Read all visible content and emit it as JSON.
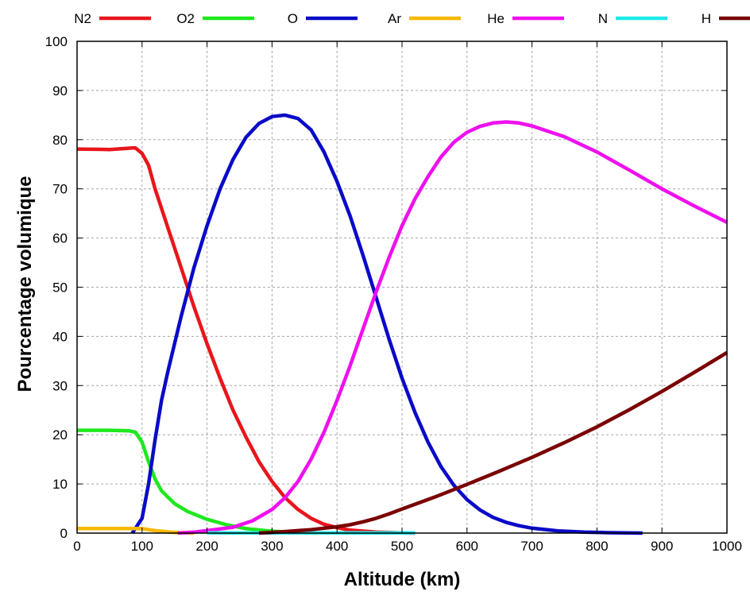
{
  "chart_data": {
    "type": "line",
    "title": "",
    "xlabel": "Altitude (km)",
    "ylabel": "Pourcentage volumique",
    "xlim": [
      0,
      1000
    ],
    "ylim": [
      0,
      100
    ],
    "xticks": [
      0,
      100,
      200,
      300,
      400,
      500,
      600,
      700,
      800,
      900,
      1000
    ],
    "yticks": [
      0,
      10,
      20,
      30,
      40,
      50,
      60,
      70,
      80,
      90,
      100
    ],
    "grid": true,
    "legend_position": "top",
    "series": [
      {
        "name": "N2",
        "color": "#e8161b",
        "points": [
          [
            0,
            78.1
          ],
          [
            50,
            78
          ],
          [
            85,
            78.3
          ],
          [
            90,
            78.3
          ],
          [
            100,
            77.2
          ],
          [
            110,
            74.8
          ],
          [
            120,
            70
          ],
          [
            140,
            62
          ],
          [
            160,
            54
          ],
          [
            180,
            46
          ],
          [
            200,
            38.5
          ],
          [
            220,
            31.5
          ],
          [
            240,
            25
          ],
          [
            260,
            19.5
          ],
          [
            280,
            14.5
          ],
          [
            300,
            10.5
          ],
          [
            320,
            7.2
          ],
          [
            340,
            4.8
          ],
          [
            360,
            3
          ],
          [
            380,
            1.8
          ],
          [
            400,
            1.1
          ],
          [
            420,
            0.6
          ],
          [
            460,
            0.2
          ],
          [
            500,
            0.05
          ],
          [
            520,
            0
          ]
        ]
      },
      {
        "name": "O2",
        "color": "#1ee81e",
        "points": [
          [
            0,
            20.9
          ],
          [
            50,
            20.9
          ],
          [
            80,
            20.8
          ],
          [
            90,
            20.5
          ],
          [
            100,
            18.5
          ],
          [
            110,
            14.5
          ],
          [
            120,
            11
          ],
          [
            130,
            8.6
          ],
          [
            150,
            6
          ],
          [
            170,
            4.4
          ],
          [
            200,
            2.8
          ],
          [
            230,
            1.7
          ],
          [
            260,
            0.9
          ],
          [
            290,
            0.5
          ],
          [
            320,
            0.2
          ],
          [
            350,
            0.05
          ],
          [
            370,
            0
          ]
        ]
      },
      {
        "name": "O",
        "color": "#0a0ac8",
        "points": [
          [
            85,
            0
          ],
          [
            100,
            3
          ],
          [
            110,
            10
          ],
          [
            120,
            19
          ],
          [
            130,
            27
          ],
          [
            140,
            33
          ],
          [
            160,
            44
          ],
          [
            180,
            54
          ],
          [
            200,
            62.5
          ],
          [
            220,
            70
          ],
          [
            240,
            76
          ],
          [
            260,
            80.5
          ],
          [
            280,
            83.3
          ],
          [
            300,
            84.7
          ],
          [
            320,
            85
          ],
          [
            340,
            84.3
          ],
          [
            360,
            82
          ],
          [
            380,
            77.5
          ],
          [
            400,
            71.5
          ],
          [
            420,
            64.5
          ],
          [
            440,
            56.5
          ],
          [
            460,
            48
          ],
          [
            480,
            39.5
          ],
          [
            500,
            31.5
          ],
          [
            520,
            24.5
          ],
          [
            540,
            18.5
          ],
          [
            560,
            13.5
          ],
          [
            580,
            9.7
          ],
          [
            600,
            6.8
          ],
          [
            620,
            4.7
          ],
          [
            640,
            3.2
          ],
          [
            660,
            2.2
          ],
          [
            680,
            1.5
          ],
          [
            700,
            1
          ],
          [
            740,
            0.45
          ],
          [
            780,
            0.2
          ],
          [
            820,
            0.08
          ],
          [
            870,
            0
          ]
        ]
      },
      {
        "name": "Ar",
        "color": "#f5b800",
        "points": [
          [
            0,
            0.93
          ],
          [
            50,
            0.93
          ],
          [
            85,
            0.93
          ],
          [
            100,
            0.9
          ],
          [
            110,
            0.7
          ],
          [
            120,
            0.5
          ],
          [
            135,
            0.3
          ],
          [
            150,
            0.15
          ],
          [
            170,
            0.05
          ],
          [
            180,
            0
          ]
        ]
      },
      {
        "name": "He",
        "color": "#ee10ee",
        "points": [
          [
            155,
            0
          ],
          [
            180,
            0.2
          ],
          [
            200,
            0.5
          ],
          [
            240,
            1.2
          ],
          [
            270,
            2.5
          ],
          [
            300,
            4.8
          ],
          [
            320,
            7.2
          ],
          [
            340,
            10.5
          ],
          [
            360,
            15
          ],
          [
            380,
            20.5
          ],
          [
            400,
            27
          ],
          [
            420,
            34
          ],
          [
            440,
            41.5
          ],
          [
            460,
            49
          ],
          [
            480,
            56
          ],
          [
            500,
            62.5
          ],
          [
            520,
            68
          ],
          [
            540,
            72.5
          ],
          [
            560,
            76.5
          ],
          [
            580,
            79.5
          ],
          [
            600,
            81.5
          ],
          [
            620,
            82.7
          ],
          [
            640,
            83.4
          ],
          [
            660,
            83.6
          ],
          [
            680,
            83.4
          ],
          [
            700,
            82.8
          ],
          [
            750,
            80.6
          ],
          [
            800,
            77.5
          ],
          [
            850,
            73.8
          ],
          [
            900,
            70
          ],
          [
            950,
            66.5
          ],
          [
            1000,
            63.2
          ]
        ]
      },
      {
        "name": "N",
        "color": "#1ee8e8",
        "points": [
          [
            200,
            0.05
          ],
          [
            250,
            0.05
          ],
          [
            300,
            0.05
          ],
          [
            350,
            0.05
          ],
          [
            400,
            0.05
          ],
          [
            450,
            0.05
          ],
          [
            500,
            0.05
          ],
          [
            520,
            0.05
          ]
        ]
      },
      {
        "name": "H",
        "color": "#7a0000",
        "points": [
          [
            280,
            0
          ],
          [
            320,
            0.3
          ],
          [
            360,
            0.7
          ],
          [
            400,
            1.3
          ],
          [
            420,
            1.7
          ],
          [
            440,
            2.3
          ],
          [
            460,
            3
          ],
          [
            480,
            3.9
          ],
          [
            500,
            4.9
          ],
          [
            550,
            7.3
          ],
          [
            600,
            9.9
          ],
          [
            650,
            12.6
          ],
          [
            700,
            15.4
          ],
          [
            750,
            18.4
          ],
          [
            800,
            21.6
          ],
          [
            850,
            25.1
          ],
          [
            900,
            28.8
          ],
          [
            950,
            32.7
          ],
          [
            1000,
            36.7
          ]
        ]
      }
    ]
  }
}
